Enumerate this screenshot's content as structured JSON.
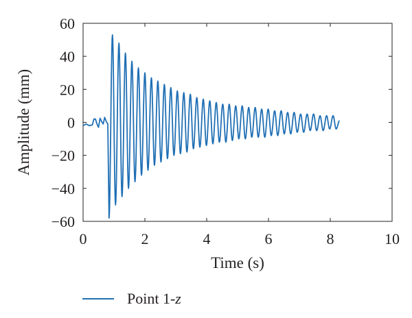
{
  "chart_data": {
    "type": "line",
    "title": "",
    "xlabel": "Time (s)",
    "ylabel": "Amplitude (mm)",
    "xlim": [
      0,
      10
    ],
    "ylim": [
      -60,
      60
    ],
    "x_ticks": [
      0,
      2,
      4,
      6,
      8,
      10
    ],
    "y_ticks": [
      -60,
      -40,
      -20,
      0,
      20,
      40,
      60
    ],
    "x_tick_labels": [
      "0",
      "2",
      "4",
      "6",
      "8",
      "10"
    ],
    "y_tick_labels": [
      "−60",
      "−40",
      "−20",
      "0",
      "20",
      "40",
      "60"
    ],
    "grid": false,
    "legend_position": "bottom",
    "line_color": "#1f6fb4",
    "series": [
      {
        "name": "Point 1-z",
        "legend_label": {
          "main": "Point 1-",
          "italic": "z"
        },
        "segments": [
          {
            "kind": "pre-impact noise",
            "x": [
              0.0,
              0.1,
              0.2,
              0.3,
              0.35,
              0.4,
              0.45,
              0.5,
              0.55,
              0.6,
              0.65,
              0.7,
              0.75,
              0.8
            ],
            "y": [
              -2.0,
              -1.0,
              -2.0,
              -1.5,
              2.0,
              2.0,
              -1.0,
              -3.0,
              2.5,
              0.5,
              -1.0,
              3.0,
              0.5,
              -1.0
            ]
          },
          {
            "kind": "damped oscillation",
            "period_s": 0.21,
            "peaks": [
              {
                "t": 0.84,
                "v": -58
              },
              {
                "t": 0.95,
                "v": 53
              },
              {
                "t": 1.05,
                "v": -50
              },
              {
                "t": 1.16,
                "v": 48
              },
              {
                "t": 1.26,
                "v": -45
              },
              {
                "t": 1.37,
                "v": 42
              },
              {
                "t": 1.47,
                "v": -40
              },
              {
                "t": 1.58,
                "v": 37
              },
              {
                "t": 1.68,
                "v": -36
              },
              {
                "t": 1.79,
                "v": 33
              },
              {
                "t": 1.89,
                "v": -32
              },
              {
                "t": 2.0,
                "v": 30
              },
              {
                "t": 2.1,
                "v": -29
              },
              {
                "t": 2.21,
                "v": 27
              },
              {
                "t": 2.31,
                "v": -26
              },
              {
                "t": 2.42,
                "v": 25
              },
              {
                "t": 2.52,
                "v": -24
              },
              {
                "t": 2.63,
                "v": 23
              },
              {
                "t": 2.73,
                "v": -22
              },
              {
                "t": 2.84,
                "v": 21
              },
              {
                "t": 2.94,
                "v": -20
              },
              {
                "t": 3.05,
                "v": 19
              },
              {
                "t": 3.15,
                "v": -19
              },
              {
                "t": 3.26,
                "v": 18
              },
              {
                "t": 3.36,
                "v": -18
              },
              {
                "t": 3.47,
                "v": 17
              },
              {
                "t": 3.57,
                "v": -16
              },
              {
                "t": 3.68,
                "v": 15
              },
              {
                "t": 3.78,
                "v": -15
              },
              {
                "t": 3.89,
                "v": 14
              },
              {
                "t": 3.99,
                "v": -14
              },
              {
                "t": 4.1,
                "v": 13
              },
              {
                "t": 4.2,
                "v": -13
              },
              {
                "t": 4.31,
                "v": 12
              },
              {
                "t": 4.41,
                "v": -12
              },
              {
                "t": 4.52,
                "v": 11
              },
              {
                "t": 4.62,
                "v": -12
              },
              {
                "t": 4.73,
                "v": 11
              },
              {
                "t": 4.83,
                "v": -11
              },
              {
                "t": 4.94,
                "v": 10
              },
              {
                "t": 5.04,
                "v": -10
              },
              {
                "t": 5.15,
                "v": 10
              },
              {
                "t": 5.25,
                "v": -10
              },
              {
                "t": 5.36,
                "v": 9
              },
              {
                "t": 5.46,
                "v": -9
              },
              {
                "t": 5.57,
                "v": 9
              },
              {
                "t": 5.67,
                "v": -9
              },
              {
                "t": 5.78,
                "v": 8
              },
              {
                "t": 5.88,
                "v": -9
              },
              {
                "t": 5.99,
                "v": 8
              },
              {
                "t": 6.09,
                "v": -8
              },
              {
                "t": 6.2,
                "v": 7
              },
              {
                "t": 6.3,
                "v": -8
              },
              {
                "t": 6.41,
                "v": 7
              },
              {
                "t": 6.51,
                "v": -7
              },
              {
                "t": 6.62,
                "v": 6
              },
              {
                "t": 6.72,
                "v": -7
              },
              {
                "t": 6.83,
                "v": 6
              },
              {
                "t": 6.93,
                "v": -6
              },
              {
                "t": 7.04,
                "v": 5
              },
              {
                "t": 7.14,
                "v": -6
              },
              {
                "t": 7.25,
                "v": 5
              },
              {
                "t": 7.35,
                "v": -5
              },
              {
                "t": 7.46,
                "v": 5
              },
              {
                "t": 7.56,
                "v": -5
              },
              {
                "t": 7.67,
                "v": 4
              },
              {
                "t": 7.77,
                "v": -5
              },
              {
                "t": 7.88,
                "v": 4
              },
              {
                "t": 7.98,
                "v": -4
              },
              {
                "t": 8.09,
                "v": 4
              },
              {
                "t": 8.19,
                "v": -4
              },
              {
                "t": 8.3,
                "v": 1
              }
            ]
          }
        ]
      }
    ]
  }
}
